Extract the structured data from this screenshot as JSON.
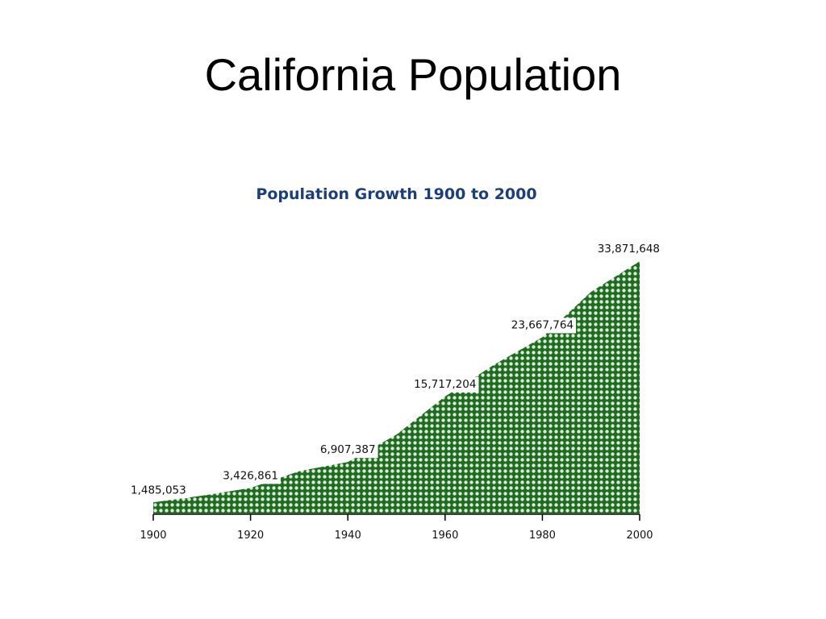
{
  "slide": {
    "title": "California Population"
  },
  "colors": {
    "fill_dark": "#1f6b1f",
    "fill_light": "#d9ead9",
    "title_blue": "#1b3f7a",
    "axis": "#000000"
  },
  "chart_data": {
    "type": "area",
    "title": "Population Growth 1900 to 2000",
    "xlabel": "",
    "ylabel": "",
    "x": [
      1900,
      1910,
      1920,
      1930,
      1940,
      1950,
      1960,
      1970,
      1980,
      1990,
      2000
    ],
    "values": [
      1485053,
      2377549,
      3426861,
      5677251,
      6907387,
      10586223,
      15717204,
      19953134,
      23667764,
      29760021,
      33871648
    ],
    "data_labels": [
      {
        "x": 1900,
        "value": 1485053,
        "text": "1,485,053"
      },
      {
        "x": 1920,
        "value": 3426861,
        "text": "3,426,861"
      },
      {
        "x": 1940,
        "value": 6907387,
        "text": "6,907,387"
      },
      {
        "x": 1960,
        "value": 15717204,
        "text": "15,717,204"
      },
      {
        "x": 1980,
        "value": 23667764,
        "text": "23,667,764"
      },
      {
        "x": 2000,
        "value": 33871648,
        "text": "33,871,648"
      }
    ],
    "xticks": [
      1900,
      1920,
      1940,
      1960,
      1980,
      2000
    ],
    "xtick_labels": [
      "1900",
      "1920",
      "1940",
      "1960",
      "1980",
      "2000"
    ],
    "xlim": [
      1900,
      2000
    ],
    "ylim": [
      0,
      34000000
    ],
    "grid": false,
    "legend": "none"
  }
}
